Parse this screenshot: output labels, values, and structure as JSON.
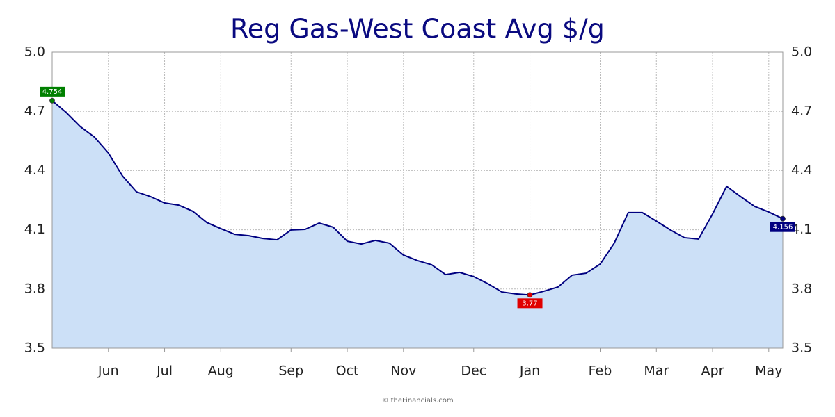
{
  "chart_data": {
    "type": "area",
    "title": "Reg Gas-West Coast Avg $/g",
    "footer": "© theFinancials.com",
    "categories": [
      null,
      null,
      null,
      null,
      "Jun",
      null,
      null,
      null,
      "Jul",
      null,
      null,
      null,
      "Aug",
      null,
      null,
      null,
      null,
      "Sep",
      null,
      null,
      null,
      "Oct",
      null,
      null,
      null,
      "Nov",
      null,
      null,
      null,
      null,
      "Dec",
      null,
      null,
      null,
      "Jan",
      null,
      null,
      null,
      null,
      "Feb",
      null,
      null,
      null,
      "Mar",
      null,
      null,
      null,
      "Apr",
      null,
      null,
      null,
      "May",
      null
    ],
    "values": [
      4.754,
      4.694,
      4.623,
      4.57,
      4.489,
      4.373,
      4.292,
      4.268,
      4.236,
      4.225,
      4.194,
      4.137,
      4.106,
      4.077,
      4.07,
      4.056,
      4.049,
      4.099,
      4.102,
      4.134,
      4.113,
      4.042,
      4.028,
      4.046,
      4.032,
      3.972,
      3.944,
      3.923,
      3.873,
      3.884,
      3.863,
      3.827,
      3.785,
      3.775,
      3.77,
      3.789,
      3.81,
      3.87,
      3.88,
      3.926,
      4.032,
      4.187,
      4.187,
      4.144,
      4.099,
      4.06,
      4.053,
      4.18,
      4.32,
      4.268,
      4.218,
      4.19,
      4.156
    ],
    "color": "#000080",
    "fill": "#cce0f7",
    "first_color": "#008000",
    "min_color": "#e00000",
    "last_color": "#000080",
    "ylim": [
      3.5,
      5
    ],
    "yticks": [
      3.5,
      3.8,
      4.1,
      4.4,
      4.7,
      {
        "value": 5,
        "label": "5.0"
      }
    ],
    "grid": true
  }
}
